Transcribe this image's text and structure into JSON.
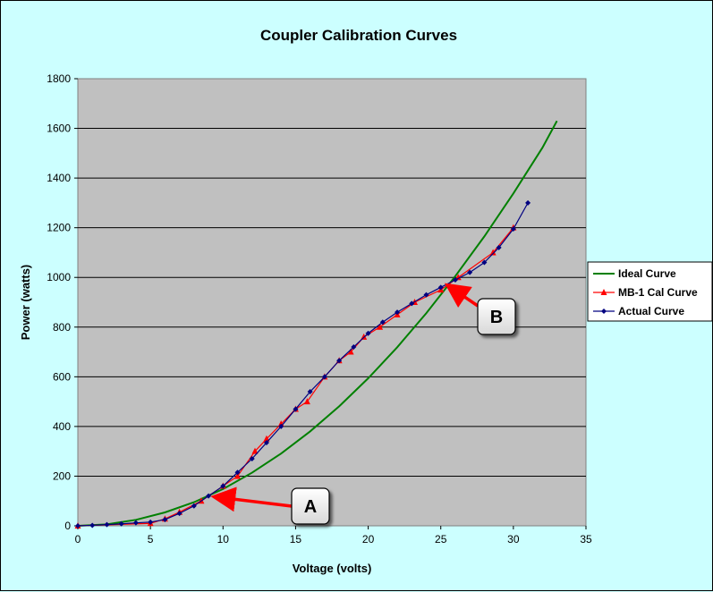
{
  "chart_data": {
    "type": "line",
    "title": "Coupler Calibration Curves",
    "xlabel": "Voltage (volts)",
    "ylabel": "Power (watts)",
    "xlim": [
      0,
      35
    ],
    "ylim": [
      0,
      1800
    ],
    "x_ticks": [
      0,
      5,
      10,
      15,
      20,
      25,
      30,
      35
    ],
    "y_ticks": [
      0,
      200,
      400,
      600,
      800,
      1000,
      1200,
      1400,
      1600,
      1800
    ],
    "grid": "horizontal",
    "legend": "right",
    "plot_background": "#c0c0c0",
    "series": [
      {
        "name": "Ideal Curve",
        "color": "#008000",
        "marker": "none",
        "x": [
          0,
          2,
          4,
          6,
          8,
          10,
          12,
          14,
          16,
          18,
          20,
          22,
          24,
          26,
          28,
          30,
          32,
          33
        ],
        "y": [
          0,
          6,
          24,
          54,
          95,
          148,
          214,
          291,
          380,
          481,
          594,
          719,
          856,
          1005,
          1165,
          1338,
          1522,
          1630
        ]
      },
      {
        "name": "MB-1 Cal Curve",
        "color": "#ff0000",
        "marker": "triangle",
        "x": [
          0,
          5,
          6,
          7,
          8.5,
          10,
          11,
          12.2,
          13,
          14,
          15,
          15.8,
          17,
          18,
          18.8,
          19.7,
          20.8,
          22,
          23.2,
          25,
          26.2,
          28.6,
          30
        ],
        "y": [
          0,
          10,
          28,
          55,
          100,
          160,
          200,
          300,
          350,
          410,
          470,
          500,
          600,
          665,
          700,
          760,
          800,
          850,
          900,
          950,
          1000,
          1100,
          1200
        ]
      },
      {
        "name": "Actual Curve",
        "color": "#000080",
        "marker": "diamond",
        "x": [
          0,
          1,
          2,
          3,
          4,
          5,
          6,
          7,
          8,
          9,
          10,
          11,
          12,
          13,
          14,
          15,
          16,
          17,
          18,
          19,
          20,
          21,
          22,
          23,
          24,
          25,
          26,
          27,
          28,
          29,
          30,
          31
        ],
        "y": [
          0,
          2,
          5,
          8,
          12,
          15,
          25,
          50,
          80,
          120,
          160,
          215,
          270,
          335,
          400,
          470,
          540,
          600,
          665,
          720,
          775,
          820,
          860,
          895,
          930,
          960,
          990,
          1020,
          1060,
          1120,
          1195,
          1300
        ]
      }
    ],
    "annotations": [
      {
        "label": "A",
        "x": 9.5,
        "y": 120
      },
      {
        "label": "B",
        "x": 25.6,
        "y": 970
      }
    ]
  }
}
